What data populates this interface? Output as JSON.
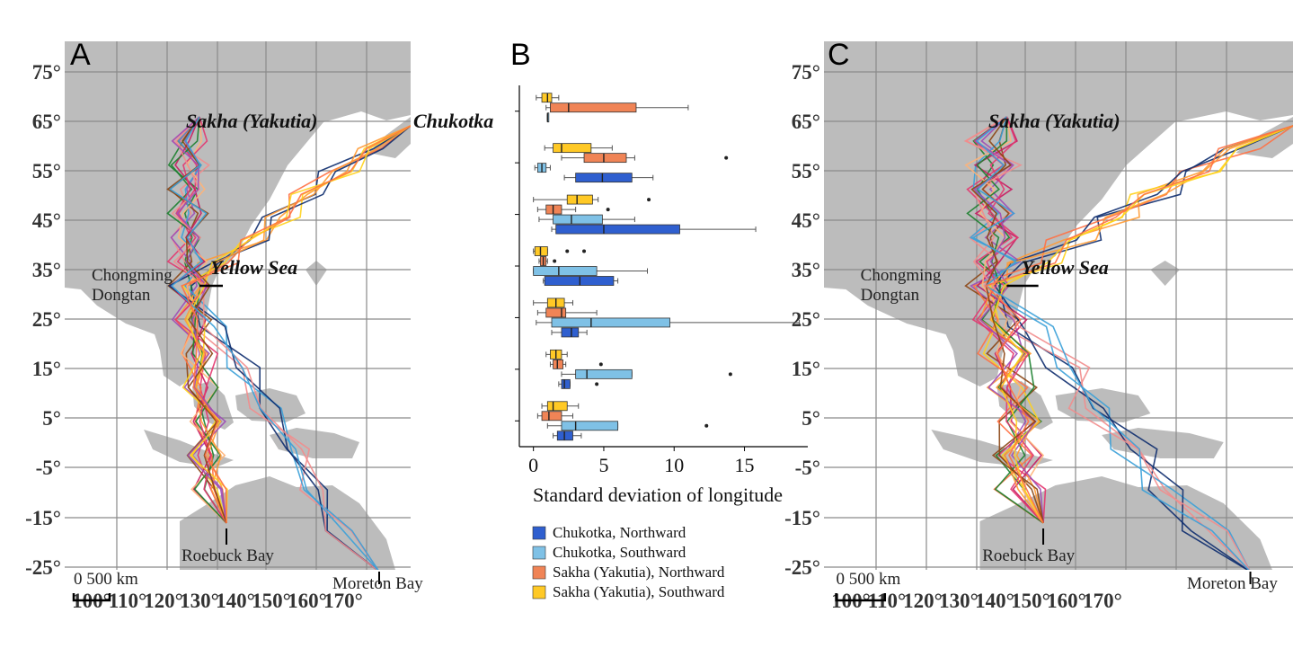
{
  "colors": {
    "land": "#bcbcbc",
    "ocean": "#ffffff",
    "grid": "#8a8a8a",
    "chukotka_north": "#2f5fcf",
    "chukotka_south": "#7fc1e6",
    "sakha_north": "#f08456",
    "sakha_south": "#ffc926"
  },
  "panels": {
    "a": {
      "letter": "A"
    },
    "b": {
      "letter": "B"
    },
    "c": {
      "letter": "C"
    }
  },
  "map": {
    "lat_labels": [
      "75°",
      "65°",
      "55°",
      "45°",
      "35°",
      "25°",
      "15°",
      "5°",
      "-5°",
      "-15°",
      "-25°"
    ],
    "lon_labels": [
      "100°",
      "110°",
      "120°",
      "130°",
      "140°",
      "150°",
      "160°",
      "170°"
    ],
    "places": {
      "chongming_1": "Chongming",
      "chongming_2": "Dongtan",
      "roebuck": "Roebuck Bay",
      "moreton": "Moreton Bay",
      "sakha": "Sakha (Yakutia)",
      "chukotka": "Chukotka",
      "yellow_sea": "Yellow Sea"
    },
    "scale": "0 500 km",
    "track_palette": [
      "#0d2c6e",
      "#1b7f2e",
      "#e3366f",
      "#ff9a33",
      "#f28c8c",
      "#9d4bb5",
      "#ffd21a",
      "#8b4513",
      "#3aa0d8",
      "#ff7043",
      "#c81b61",
      "#ffb277"
    ]
  },
  "chart_data": {
    "type": "box",
    "orientation": "horizontal",
    "xlabel": "Standard deviation of longitude",
    "xlim": [
      -1,
      19.5
    ],
    "xticks": [
      0,
      5,
      10,
      15
    ],
    "groups": [
      {
        "boxes": [
          {
            "series": "Sakha (Yakutia), Southward",
            "q1": 0.6,
            "median": 1.0,
            "q3": 1.3,
            "whisker_low": 0.2,
            "whisker_high": 1.8,
            "outliers": []
          },
          {
            "series": "Sakha (Yakutia), Northward",
            "q1": 1.2,
            "median": 2.5,
            "q3": 7.3,
            "whisker_low": 0.9,
            "whisker_high": 11.0,
            "outliers": []
          },
          {
            "series": "Chukotka, Southward",
            "q1": 1.0,
            "median": 1.0,
            "q3": 1.0,
            "whisker_low": 1.0,
            "whisker_high": 1.0,
            "outliers": []
          }
        ]
      },
      {
        "boxes": [
          {
            "series": "Sakha (Yakutia), Southward",
            "q1": 1.4,
            "median": 2.0,
            "q3": 4.1,
            "whisker_low": 0.8,
            "whisker_high": 5.6,
            "outliers": []
          },
          {
            "series": "Sakha (Yakutia), Northward",
            "q1": 3.6,
            "median": 5.0,
            "q3": 6.6,
            "whisker_low": 2.0,
            "whisker_high": 7.2,
            "outliers": [
              13.7
            ]
          },
          {
            "series": "Chukotka, Southward",
            "q1": 0.3,
            "median": 0.6,
            "q3": 0.9,
            "whisker_low": 0.1,
            "whisker_high": 1.2,
            "outliers": []
          },
          {
            "series": "Chukotka, Northward",
            "q1": 3.0,
            "median": 4.9,
            "q3": 7.0,
            "whisker_low": 2.2,
            "whisker_high": 8.5,
            "outliers": []
          }
        ]
      },
      {
        "boxes": [
          {
            "series": "Sakha (Yakutia), Southward",
            "q1": 2.4,
            "median": 3.1,
            "q3": 4.2,
            "whisker_low": 0.0,
            "whisker_high": 4.6,
            "outliers": [
              8.2
            ]
          },
          {
            "series": "Sakha (Yakutia), Northward",
            "q1": 0.9,
            "median": 1.4,
            "q3": 2.0,
            "whisker_low": 0.3,
            "whisker_high": 3.0,
            "outliers": [
              5.3
            ]
          },
          {
            "series": "Chukotka, Southward",
            "q1": 1.4,
            "median": 2.7,
            "q3": 4.9,
            "whisker_low": 0.4,
            "whisker_high": 7.2,
            "outliers": []
          },
          {
            "series": "Chukotka, Northward",
            "q1": 1.6,
            "median": 5.0,
            "q3": 10.4,
            "whisker_low": 1.3,
            "whisker_high": 15.8,
            "outliers": []
          }
        ]
      },
      {
        "boxes": [
          {
            "series": "Sakha (Yakutia), Southward",
            "q1": 0.1,
            "median": 0.5,
            "q3": 1.0,
            "whisker_low": 0.0,
            "whisker_high": 1.0,
            "outliers": [
              2.4,
              3.6
            ]
          },
          {
            "series": "Sakha (Yakutia), Northward",
            "q1": 0.5,
            "median": 0.7,
            "q3": 0.9,
            "whisker_low": 0.4,
            "whisker_high": 1.0,
            "outliers": [
              1.5
            ]
          },
          {
            "series": "Chukotka, Southward",
            "q1": 0.0,
            "median": 1.8,
            "q3": 4.5,
            "whisker_low": 0.0,
            "whisker_high": 8.1,
            "outliers": []
          },
          {
            "series": "Chukotka, Northward",
            "q1": 0.8,
            "median": 3.3,
            "q3": 5.7,
            "whisker_low": 0.7,
            "whisker_high": 6.0,
            "outliers": []
          }
        ]
      },
      {
        "boxes": [
          {
            "series": "Sakha (Yakutia), Southward",
            "q1": 1.0,
            "median": 1.6,
            "q3": 2.2,
            "whisker_low": 0.0,
            "whisker_high": 2.8,
            "outliers": []
          },
          {
            "series": "Sakha (Yakutia), Northward",
            "q1": 0.9,
            "median": 2.0,
            "q3": 2.3,
            "whisker_low": 0.3,
            "whisker_high": 4.5,
            "outliers": []
          },
          {
            "series": "Chukotka, Southward",
            "q1": 1.3,
            "median": 4.1,
            "q3": 9.7,
            "whisker_low": 0.2,
            "whisker_high": 18.9,
            "outliers": []
          },
          {
            "series": "Chukotka, Northward",
            "q1": 2.0,
            "median": 2.7,
            "q3": 3.2,
            "whisker_low": 1.3,
            "whisker_high": 3.8,
            "outliers": []
          }
        ]
      },
      {
        "boxes": [
          {
            "series": "Sakha (Yakutia), Southward",
            "q1": 1.2,
            "median": 1.6,
            "q3": 2.0,
            "whisker_low": 0.9,
            "whisker_high": 2.4,
            "outliers": []
          },
          {
            "series": "Sakha (Yakutia), Northward",
            "q1": 1.4,
            "median": 1.7,
            "q3": 2.1,
            "whisker_low": 1.2,
            "whisker_high": 2.3,
            "outliers": [
              4.8
            ]
          },
          {
            "series": "Chukotka, Southward",
            "q1": 3.0,
            "median": 3.8,
            "q3": 7.0,
            "whisker_low": 2.0,
            "whisker_high": 7.0,
            "outliers": [
              14.0
            ]
          },
          {
            "series": "Chukotka, Northward",
            "q1": 2.0,
            "median": 2.2,
            "q3": 2.6,
            "whisker_low": 1.8,
            "whisker_high": 2.6,
            "outliers": [
              4.5
            ]
          }
        ]
      },
      {
        "boxes": [
          {
            "series": "Sakha (Yakutia), Southward",
            "q1": 1.0,
            "median": 1.4,
            "q3": 2.4,
            "whisker_low": 0.6,
            "whisker_high": 3.2,
            "outliers": []
          },
          {
            "series": "Sakha (Yakutia), Northward",
            "q1": 0.6,
            "median": 1.1,
            "q3": 2.0,
            "whisker_low": 0.3,
            "whisker_high": 2.8,
            "outliers": []
          },
          {
            "series": "Chukotka, Southward",
            "q1": 2.0,
            "median": 3.0,
            "q3": 6.0,
            "whisker_low": 1.0,
            "whisker_high": 6.0,
            "outliers": [
              12.3
            ]
          },
          {
            "series": "Chukotka, Northward",
            "q1": 1.7,
            "median": 2.2,
            "q3": 2.8,
            "whisker_low": 1.4,
            "whisker_high": 3.4,
            "outliers": []
          }
        ]
      }
    ],
    "legend": {
      "position": "bottom",
      "entries": [
        {
          "label": "Chukotka, Northward",
          "color_key": "chukotka_north"
        },
        {
          "label": "Chukotka, Southward",
          "color_key": "chukotka_south"
        },
        {
          "label": "Sakha (Yakutia), Northward",
          "color_key": "sakha_north"
        },
        {
          "label": "Sakha (Yakutia), Southward",
          "color_key": "sakha_south"
        }
      ]
    }
  }
}
